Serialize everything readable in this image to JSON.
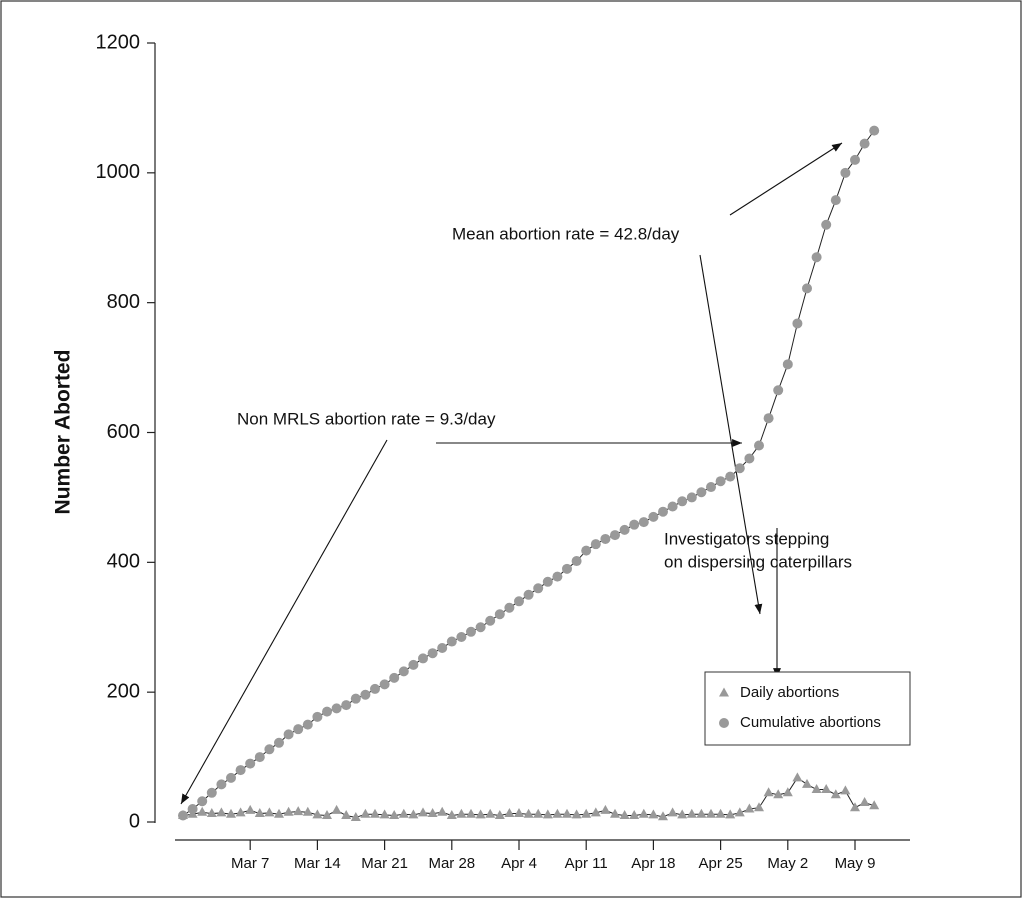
{
  "chart_data": {
    "type": "line",
    "ylabel": "Number Aborted",
    "categories": [
      null,
      null,
      null,
      null,
      null,
      null,
      null,
      "Mar 7",
      null,
      null,
      null,
      null,
      null,
      null,
      "Mar 14",
      null,
      null,
      null,
      null,
      null,
      null,
      "Mar 21",
      null,
      null,
      null,
      null,
      null,
      null,
      "Mar 28",
      null,
      null,
      null,
      null,
      null,
      null,
      "Apr 4",
      null,
      null,
      null,
      null,
      null,
      null,
      "Apr 11",
      null,
      null,
      null,
      null,
      null,
      null,
      "Apr 18",
      null,
      null,
      null,
      null,
      null,
      null,
      "Apr 25",
      null,
      null,
      null,
      null,
      null,
      null,
      "May 2",
      null,
      null,
      null,
      null,
      null,
      null,
      "May 9",
      null,
      null
    ],
    "series": [
      {
        "name": "Daily abortions",
        "color": "#999999",
        "marker": "triangle",
        "values": [
          10,
          12,
          15,
          13,
          14,
          12,
          14,
          18,
          13,
          14,
          12,
          15,
          16,
          15,
          11,
          10,
          18,
          10,
          7,
          12,
          12,
          11,
          10,
          12,
          11,
          14,
          13,
          15,
          10,
          12,
          12,
          11,
          12,
          10,
          13,
          13,
          12,
          12,
          11,
          12,
          12,
          11,
          12,
          14,
          18,
          12,
          10,
          10,
          12,
          11,
          8,
          14,
          11,
          12,
          12,
          12,
          12,
          11,
          14,
          20,
          22,
          45,
          42,
          45,
          68,
          58,
          50,
          50,
          42,
          48,
          22,
          30,
          25
        ]
      },
      {
        "name": "Cumulative abortions",
        "color": "#999999",
        "marker": "circle",
        "values": [
          10,
          20,
          32,
          45,
          58,
          68,
          80,
          90,
          100,
          112,
          122,
          135,
          143,
          150,
          162,
          170,
          175,
          180,
          190,
          196,
          205,
          212,
          222,
          232,
          242,
          252,
          260,
          268,
          278,
          285,
          293,
          300,
          310,
          320,
          330,
          340,
          350,
          360,
          370,
          378,
          390,
          402,
          418,
          428,
          436,
          442,
          450,
          458,
          462,
          470,
          478,
          486,
          494,
          500,
          508,
          516,
          525,
          532,
          545,
          560,
          580,
          622,
          665,
          705,
          768,
          822,
          870,
          920,
          958,
          1000,
          1020,
          1045,
          1065
        ]
      }
    ],
    "ylim": [
      0,
      1200
    ],
    "yticks": [
      0,
      200,
      400,
      600,
      800,
      1000,
      1200
    ],
    "legend": "lower right",
    "annotations": [
      "Mean abortion rate = 42.8/day",
      "Non MRLS abortion rate = 9.3/day",
      "Investigators stepping",
      "on dispersing caterpillars"
    ]
  }
}
